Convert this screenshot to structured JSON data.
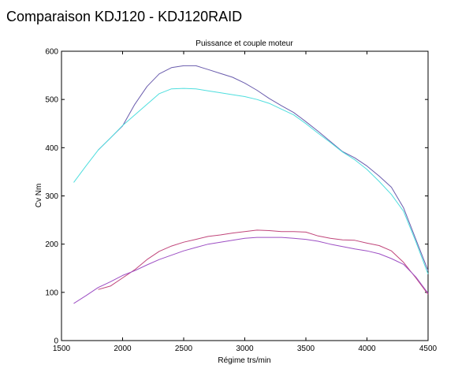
{
  "page": {
    "title": "Comparaison KDJ120 - KDJ120RAID"
  },
  "chart_data": {
    "type": "line",
    "title": "Puissance et couple moteur",
    "xlabel": "Régime trs/min",
    "ylabel": "Cv Nm",
    "xlim": [
      1500,
      4500
    ],
    "ylim": [
      0,
      600
    ],
    "xticks": [
      1500,
      2000,
      2500,
      3000,
      3500,
      4000,
      4500
    ],
    "yticks": [
      0,
      100,
      200,
      300,
      400,
      500,
      600
    ],
    "grid": false,
    "series": [
      {
        "color": "#6a5cad",
        "x": [
          1800,
          2000,
          2100,
          2200,
          2300,
          2400,
          2500,
          2600,
          2700,
          2800,
          2900,
          3000,
          3100,
          3200,
          3300,
          3400,
          3500,
          3600,
          3700,
          3800,
          3900,
          4000,
          4100,
          4200,
          4300,
          4400,
          4500
        ],
        "y": [
          395,
          445,
          490,
          527,
          553,
          566,
          570,
          570,
          562,
          554,
          546,
          534,
          519,
          502,
          487,
          473,
          454,
          434,
          413,
          392,
          379,
          362,
          341,
          318,
          275,
          210,
          145
        ]
      },
      {
        "color": "#4fdede",
        "x": [
          1600,
          1700,
          1800,
          1900,
          2000,
          2100,
          2200,
          2300,
          2400,
          2500,
          2600,
          2700,
          2800,
          2900,
          3000,
          3100,
          3200,
          3300,
          3400,
          3500,
          3600,
          3700,
          3800,
          3900,
          4000,
          4100,
          4200,
          4300,
          4400,
          4500
        ],
        "y": [
          328,
          362,
          395,
          420,
          446,
          468,
          490,
          512,
          522,
          523,
          522,
          518,
          514,
          510,
          506,
          500,
          492,
          480,
          468,
          450,
          430,
          411,
          391,
          375,
          355,
          330,
          303,
          268,
          205,
          138
        ]
      },
      {
        "color": "#c0457a",
        "x": [
          1800,
          1900,
          2000,
          2100,
          2200,
          2300,
          2400,
          2500,
          2600,
          2700,
          2800,
          2900,
          3000,
          3100,
          3200,
          3300,
          3400,
          3500,
          3600,
          3700,
          3800,
          3900,
          4000,
          4100,
          4200,
          4300,
          4400,
          4500
        ],
        "y": [
          106,
          113,
          130,
          147,
          168,
          185,
          196,
          204,
          210,
          216,
          219,
          223,
          226,
          229,
          228,
          226,
          226,
          225,
          217,
          212,
          209,
          208,
          202,
          197,
          186,
          162,
          130,
          96
        ]
      },
      {
        "color": "#9d4fc4",
        "x": [
          1600,
          1700,
          1800,
          1900,
          2000,
          2100,
          2200,
          2300,
          2400,
          2500,
          2600,
          2700,
          2800,
          2900,
          3000,
          3100,
          3200,
          3300,
          3400,
          3500,
          3600,
          3700,
          3800,
          3900,
          4000,
          4100,
          4200,
          4300,
          4400,
          4500
        ],
        "y": [
          77,
          93,
          110,
          122,
          135,
          145,
          157,
          168,
          177,
          186,
          193,
          200,
          204,
          208,
          212,
          214,
          214,
          214,
          212,
          210,
          206,
          200,
          195,
          190,
          186,
          180,
          170,
          158,
          132,
          98
        ]
      }
    ]
  }
}
